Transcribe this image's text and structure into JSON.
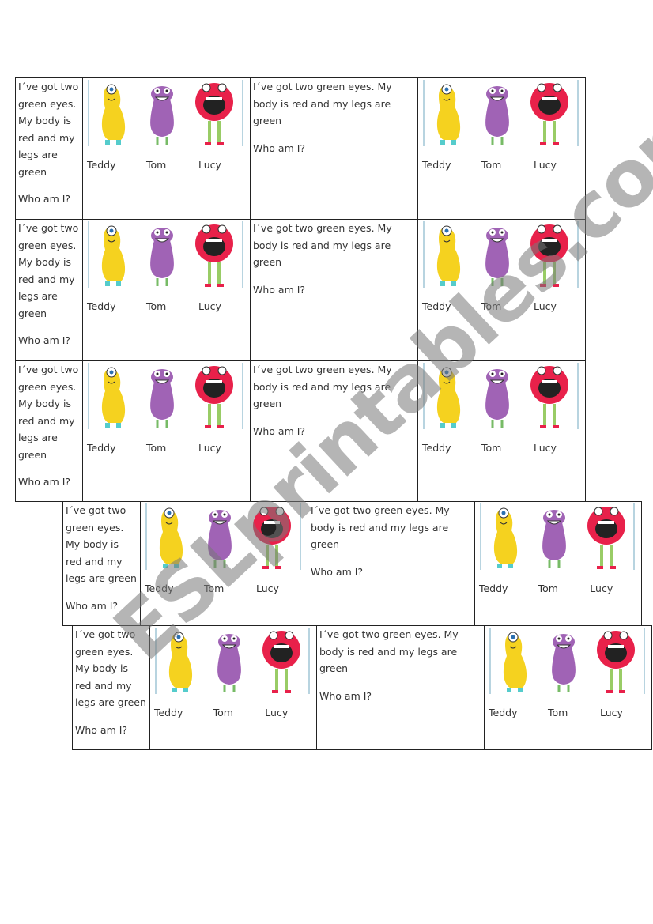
{
  "rows": [
    {
      "cells": [
        {
          "text": "I´ve got two green eyes. My body is red and my legs are green",
          "question": "Who am I?"
        },
        {
          "names": [
            "Teddy",
            "Tom",
            "Lucy"
          ]
        },
        {
          "text": "I´ve got two green eyes. My body is red and my legs are green",
          "question": "Who am I?"
        },
        {
          "names": [
            "Teddy",
            "Tom",
            "Lucy"
          ]
        }
      ]
    },
    {
      "cells": [
        {
          "text": "I´ve got two green eyes. My body is red and my legs are green",
          "question": "Who am I?"
        },
        {
          "names": [
            "Teddy",
            "Tom",
            "Lucy"
          ]
        },
        {
          "text": "I´ve got two green eyes. My body is red and my legs are green",
          "question": "Who am I?"
        },
        {
          "names": [
            "Teddy",
            "Tom",
            "Lucy"
          ]
        }
      ]
    },
    {
      "cells": [
        {
          "text": "I´ve got two green eyes. My body is red and my legs are green",
          "question": "Who am I?"
        },
        {
          "names": [
            "Teddy",
            "Tom",
            "Lucy"
          ]
        },
        {
          "text": "I´ve got two green eyes. My body is red and my legs are green",
          "question": "Who am I?"
        },
        {
          "names": [
            "Teddy",
            "Tom",
            "Lucy"
          ]
        }
      ]
    },
    {
      "cells": [
        {
          "text": "I´ve got two green eyes. My body is red and my legs are green",
          "question": "Who am I?"
        },
        {
          "names": [
            "Teddy",
            "Tom",
            "Lucy"
          ]
        },
        {
          "text": "I´ve got two green eyes. My body is red and my legs are green",
          "question": "Who am I?"
        },
        {
          "names": [
            "Teddy",
            "Tom",
            "Lucy"
          ]
        }
      ]
    },
    {
      "cells": [
        {
          "text": "I´ve got two green eyes. My body is red and my legs are green",
          "question": "Who am I?"
        },
        {
          "names": [
            "Teddy",
            "Tom",
            "Lucy"
          ]
        },
        {
          "text": "I´ve got two green eyes. My body is red and my legs are green",
          "question": "Who am I?"
        },
        {
          "names": [
            "Teddy",
            "Tom",
            "Lucy"
          ]
        }
      ]
    }
  ],
  "watermark": "ESLprintables.com"
}
